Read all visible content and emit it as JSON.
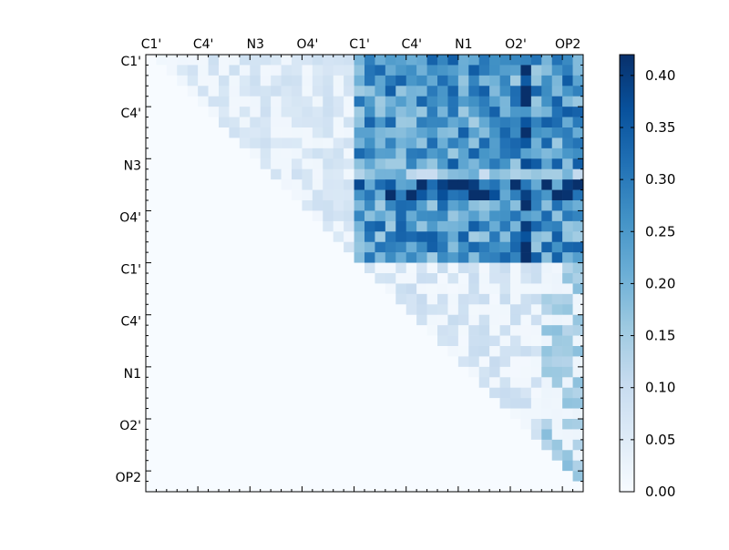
{
  "chart_data": {
    "type": "heatmap",
    "title": "",
    "x_tick_labels": [
      "C1'",
      "C4'",
      "N3",
      "O4'",
      "C1'",
      "C4'",
      "N1",
      "O2'",
      "OP2"
    ],
    "y_tick_labels": [
      "C1'",
      "C4'",
      "N3",
      "O4'",
      "C1'",
      "C4'",
      "N1",
      "O2'",
      "OP2"
    ],
    "matrix_size": 42,
    "colorbar": {
      "min": 0.0,
      "max": 0.42,
      "ticks": [
        "0.00",
        "0.05",
        "0.10",
        "0.15",
        "0.20",
        "0.25",
        "0.30",
        "0.35",
        "0.40"
      ],
      "colormap": [
        "#f7fbff",
        "#deebf7",
        "#c6dbef",
        "#9ecae1",
        "#6baed6",
        "#4292c6",
        "#2171b5",
        "#08519c",
        "#08306b"
      ]
    },
    "regions": [
      {
        "name": "residue1-residue1",
        "rows": [
          0,
          19
        ],
        "cols": [
          0,
          19
        ],
        "level": 0.07
      },
      {
        "name": "residue1-residue2",
        "rows": [
          0,
          19
        ],
        "cols": [
          20,
          41
        ],
        "level": 0.27
      },
      {
        "name": "residue2-residue2",
        "rows": [
          20,
          41
        ],
        "cols": [
          20,
          41
        ],
        "level": 0.08
      }
    ],
    "highlights": [
      {
        "rows": [
          12,
          13
        ],
        "cols": [
          20,
          41
        ],
        "level": 0.36
      },
      {
        "rows": [
          0,
          19
        ],
        "cols": [
          36,
          36
        ],
        "level": 0.38
      },
      {
        "rows": [
          11,
          11
        ],
        "cols": [
          20,
          41
        ],
        "level": 0.17
      },
      {
        "rows": [
          20,
          41
        ],
        "cols": [
          38,
          41
        ],
        "level": 0.14
      }
    ]
  }
}
